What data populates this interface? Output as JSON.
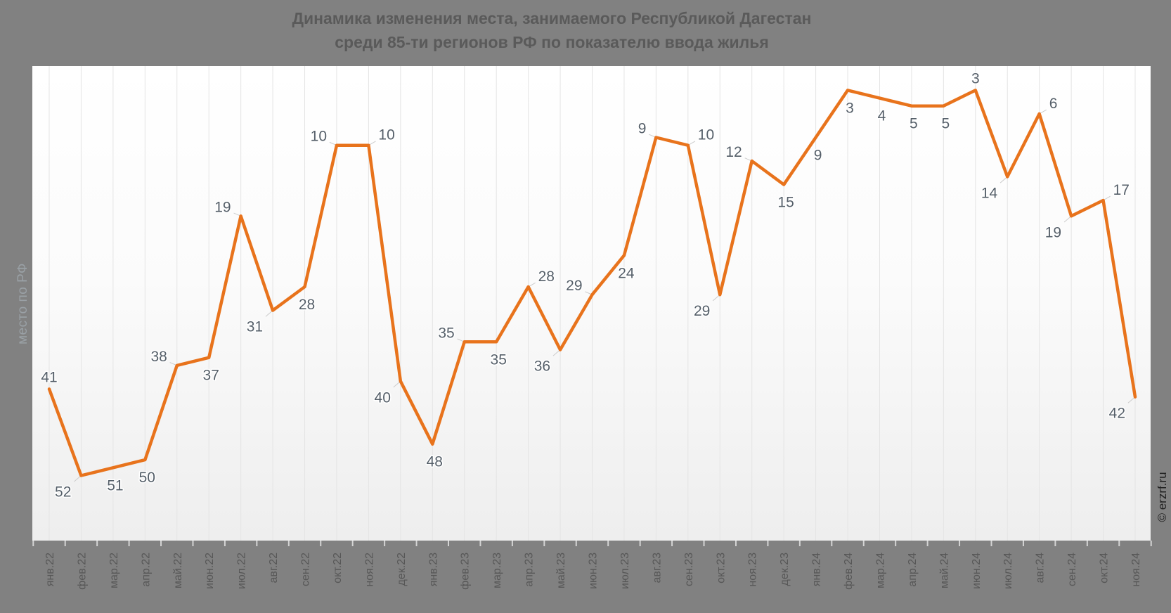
{
  "page": {
    "title_line1": "Динамика изменения места, занимаемого Республикой Дагестан",
    "title_line2": "среди 85-ти регионов РФ по показателю ввода жилья",
    "watermark": "© erzrf.ru"
  },
  "chart_data": {
    "type": "line",
    "title": "Динамика изменения места, занимаемого Республикой Дагестан среди 85-ти регионов РФ по показателю ввода жилья",
    "xlabel": "",
    "ylabel": "место по РФ",
    "y_axis": {
      "inverted": true,
      "min": 1,
      "max": 60,
      "visible_scale": false
    },
    "grid": "vertical-only",
    "legend": "none",
    "line_color": "#e8731c",
    "data_label_color": "#555f69",
    "background_outer": "#818181",
    "background_plot": "#ffffff",
    "categories": [
      "янв.22",
      "фев.22",
      "мар.22",
      "апр.22",
      "май.22",
      "июн.22",
      "июл.22",
      "авг.22",
      "сен.22",
      "окт.22",
      "ноя.22",
      "дек.22",
      "янв.23",
      "фев.23",
      "мар.23",
      "апр.23",
      "май.23",
      "июн.23",
      "июл.23",
      "авг.23",
      "сен.23",
      "окт.23",
      "ноя.23",
      "дек.23",
      "янв.24",
      "фев.24",
      "мар.24",
      "апр.24",
      "май.24",
      "июн.24",
      "июл.24",
      "авг.24",
      "сен.24",
      "окт.24",
      "ноя.24"
    ],
    "values": [
      41,
      52,
      51,
      50,
      38,
      37,
      19,
      31,
      28,
      10,
      10,
      40,
      48,
      35,
      35,
      28,
      36,
      29,
      24,
      9,
      10,
      29,
      12,
      15,
      9,
      3,
      4,
      5,
      5,
      3,
      14,
      6,
      19,
      17,
      42
    ],
    "label_positions": [
      "above",
      "below-left",
      "below",
      "below",
      "above-left",
      "below",
      "above-left",
      "below-left",
      "below",
      "above-left",
      "above-right",
      "below-left",
      "below",
      "above-left",
      "below",
      "above-right",
      "below-left",
      "above-left",
      "below",
      "above-left",
      "above-right",
      "below-left",
      "above-left",
      "below",
      "below",
      "below",
      "below",
      "below",
      "below",
      "above",
      "below-left",
      "above-right",
      "below-left",
      "above-right",
      "below-left"
    ]
  }
}
